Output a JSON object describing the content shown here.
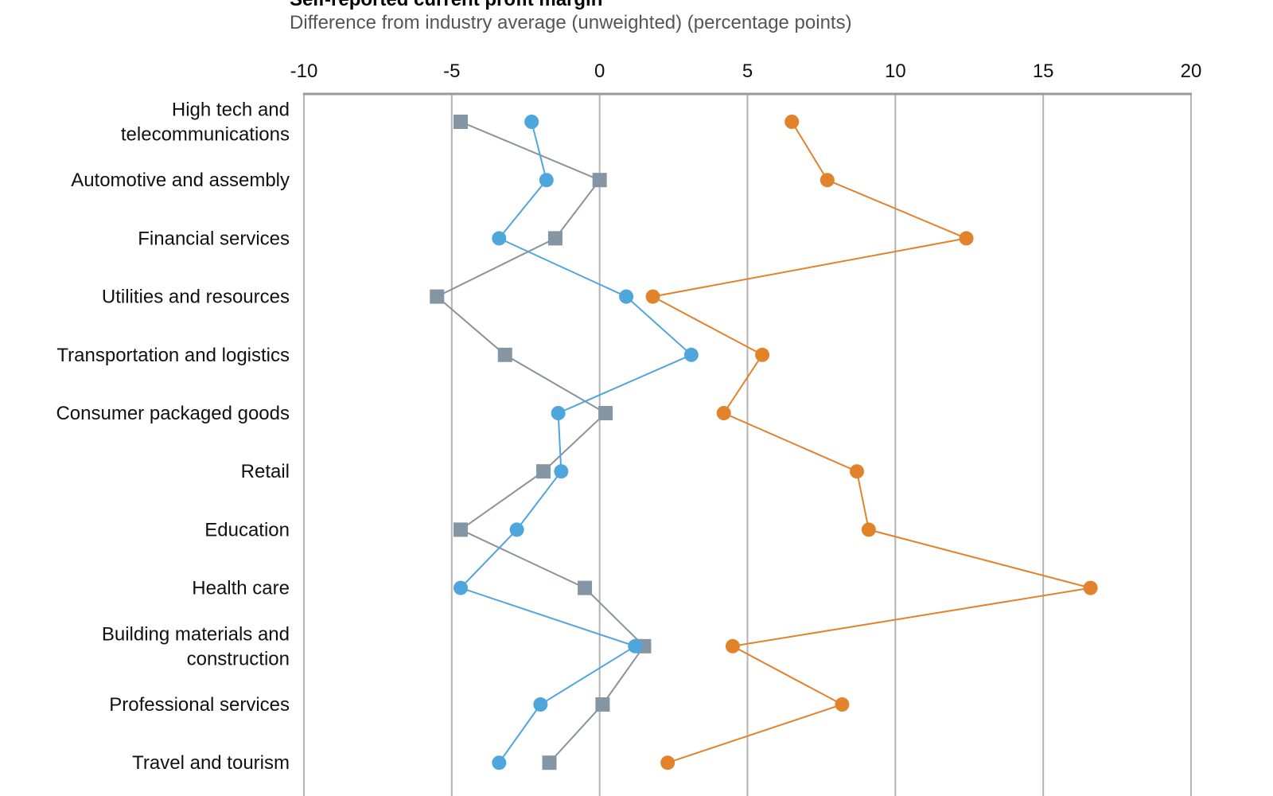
{
  "chart_data": {
    "type": "line",
    "title": "Self-reported current profit margin",
    "subtitle": "Difference from industry average (unweighted) (percentage points)",
    "xlabel": "",
    "ylabel": "",
    "xlim": [
      -10,
      20
    ],
    "x_ticks": [
      "-10",
      "-5",
      "0",
      "5",
      "10",
      "15",
      "20"
    ],
    "x_tick_values": [
      -10,
      -5,
      0,
      5,
      10,
      15,
      20
    ],
    "grid": "vertical",
    "orientation": "horizontal-categories",
    "categories": [
      [
        "High tech and",
        "telecommunications"
      ],
      [
        "Automotive and assembly"
      ],
      [
        "Financial services"
      ],
      [
        "Utilities and resources"
      ],
      [
        "Transportation and logistics"
      ],
      [
        "Consumer packaged goods"
      ],
      [
        "Retail"
      ],
      [
        "Education"
      ],
      [
        "Health care"
      ],
      [
        "Building materials and",
        "construction"
      ],
      [
        "Professional services"
      ],
      [
        "Travel and tourism"
      ]
    ],
    "series": [
      {
        "name": "gray-series",
        "marker": "square",
        "color": "#8496a3",
        "line_color": "#8a9399",
        "values": [
          -4.7,
          0.0,
          -1.5,
          -5.5,
          -3.2,
          0.2,
          -1.9,
          -4.7,
          -0.5,
          1.5,
          0.1,
          -1.7
        ]
      },
      {
        "name": "blue-series",
        "marker": "circle",
        "color": "#4ea6dc",
        "line_color": "#4ea6dc",
        "values": [
          -2.3,
          -1.8,
          -3.4,
          0.9,
          3.1,
          -1.4,
          -1.3,
          -2.8,
          -4.7,
          1.2,
          -2.0,
          -3.4
        ]
      },
      {
        "name": "orange-series",
        "marker": "circle",
        "color": "#e2832b",
        "line_color": "#e2832b",
        "values": [
          6.5,
          7.7,
          12.4,
          1.8,
          5.5,
          4.2,
          8.7,
          9.1,
          16.6,
          4.5,
          8.2,
          2.3
        ]
      }
    ]
  }
}
